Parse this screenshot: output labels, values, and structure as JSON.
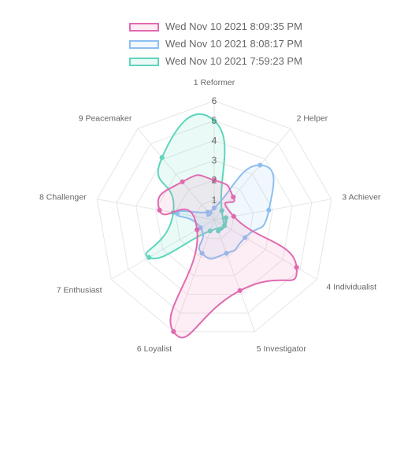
{
  "chart_data": {
    "type": "radar",
    "categories": [
      "1 Reformer",
      "2 Helper",
      "3 Achiever",
      "4 Individualist",
      "5 Investigator",
      "6 Loyalist",
      "7 Enthusiast",
      "8 Challenger",
      "9 Peacemaker"
    ],
    "r_ticks": [
      "1",
      "2",
      "3",
      "4",
      "5",
      "6"
    ],
    "r_range": [
      0,
      6
    ],
    "grid": true,
    "legend": "top",
    "series": [
      {
        "name": "Wed Nov 10 2021 8:09:35 PM",
        "values": [
          2,
          1.5,
          1,
          4.8,
          3.8,
          6,
          1,
          2.8,
          2.5
        ],
        "color": "#e06aaf",
        "fill": "rgba(236,120,180,0.13)"
      },
      {
        "name": "Wed Nov 10 2021 8:08:17 PM",
        "values": [
          0.6,
          3.6,
          2.8,
          1.8,
          1.8,
          1.8,
          0.8,
          1.9,
          0.5
        ],
        "color": "#8dbff0",
        "fill": "rgba(141,191,240,0.13)"
      },
      {
        "name": "Wed Nov 10 2021 7:59:23 PM",
        "values": [
          5,
          0.6,
          0.6,
          0.6,
          0.6,
          0.6,
          3.8,
          2.1,
          4.1
        ],
        "color": "#5fd6bd",
        "fill": "rgba(95,214,189,0.13)"
      }
    ]
  }
}
